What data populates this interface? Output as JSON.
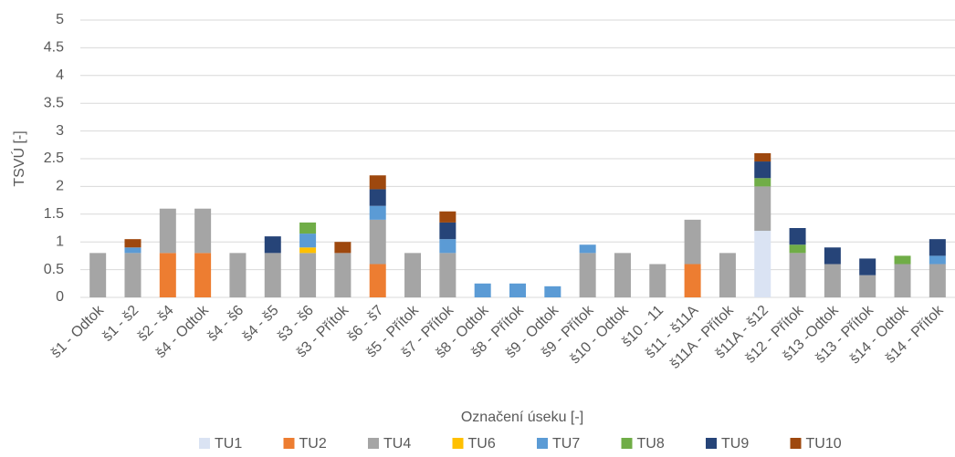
{
  "chart_data": {
    "type": "stacked-bar",
    "y_label": "TSVÚ [-]",
    "x_label": "Označení úseku [-]",
    "categories": [
      "š1 - Odtok",
      "š1 - š2",
      "š2 - š4",
      "š4 - Odtok",
      "š4 - š6",
      "š4 - š5",
      "š3 - š6",
      "š3 - Přítok",
      "š6 - š7",
      "š5 - Přítok",
      "š7 - Přítok",
      "š8 - Odtok",
      "š8 - Přítok",
      "š9 - Odtok",
      "š9 - Přítok",
      "š10 - Odtok",
      "š10 - 11",
      "š11 - š11A",
      "š11A - Přítok",
      "š11A - š12",
      "š12 - Přítok",
      "š13 -Odtok",
      "š13 - Přítok",
      "š14 - Odtok",
      "š14 - Přítok"
    ],
    "series": [
      {
        "name": "TU1",
        "color": "#dae3f3",
        "values": [
          null,
          null,
          null,
          null,
          null,
          null,
          null,
          null,
          null,
          null,
          null,
          null,
          null,
          null,
          null,
          null,
          null,
          null,
          null,
          1.2,
          null,
          null,
          null,
          null,
          null
        ]
      },
      {
        "name": "TU2",
        "color": "#ed7d31",
        "values": [
          null,
          null,
          0.8,
          0.8,
          null,
          null,
          null,
          null,
          0.6,
          null,
          null,
          null,
          null,
          null,
          null,
          null,
          null,
          0.6,
          null,
          null,
          null,
          null,
          null,
          null,
          null
        ]
      },
      {
        "name": "TU4",
        "color": "#a5a5a5",
        "values": [
          0.8,
          0.8,
          0.8,
          0.8,
          0.8,
          0.8,
          0.8,
          0.8,
          0.8,
          0.8,
          0.8,
          null,
          null,
          null,
          0.8,
          0.8,
          0.6,
          0.8,
          0.8,
          0.8,
          0.8,
          0.6,
          0.4,
          0.6,
          0.6
        ]
      },
      {
        "name": "TU6",
        "color": "#ffc000",
        "values": [
          null,
          null,
          null,
          null,
          null,
          null,
          0.1,
          null,
          null,
          null,
          null,
          null,
          null,
          null,
          null,
          null,
          null,
          null,
          null,
          null,
          null,
          null,
          null,
          null,
          null
        ]
      },
      {
        "name": "TU7",
        "color": "#5b9bd5",
        "values": [
          null,
          0.1,
          null,
          null,
          null,
          null,
          0.25,
          null,
          0.25,
          null,
          0.25,
          0.25,
          0.25,
          0.2,
          0.15,
          null,
          null,
          null,
          null,
          null,
          null,
          null,
          null,
          null,
          0.15
        ]
      },
      {
        "name": "TU8",
        "color": "#70ad47",
        "values": [
          null,
          null,
          null,
          null,
          null,
          null,
          0.2,
          null,
          null,
          null,
          null,
          null,
          null,
          null,
          null,
          null,
          null,
          null,
          null,
          0.15,
          0.15,
          null,
          null,
          0.15,
          null
        ]
      },
      {
        "name": "TU9",
        "color": "#264478",
        "values": [
          null,
          null,
          null,
          null,
          null,
          0.3,
          null,
          null,
          0.3,
          null,
          0.3,
          null,
          null,
          null,
          null,
          null,
          null,
          null,
          null,
          0.3,
          0.3,
          0.3,
          0.3,
          null,
          0.3
        ]
      },
      {
        "name": "TU10",
        "color": "#9e480e",
        "values": [
          null,
          0.15,
          null,
          null,
          null,
          null,
          null,
          0.2,
          0.25,
          null,
          0.2,
          null,
          null,
          null,
          null,
          null,
          null,
          null,
          null,
          0.15,
          null,
          null,
          null,
          null,
          null
        ]
      }
    ],
    "ylim": [
      0,
      5
    ],
    "yticks": [
      0,
      0.5,
      1,
      1.5,
      2,
      2.5,
      3,
      3.5,
      4,
      4.5,
      5
    ],
    "grid": true
  }
}
